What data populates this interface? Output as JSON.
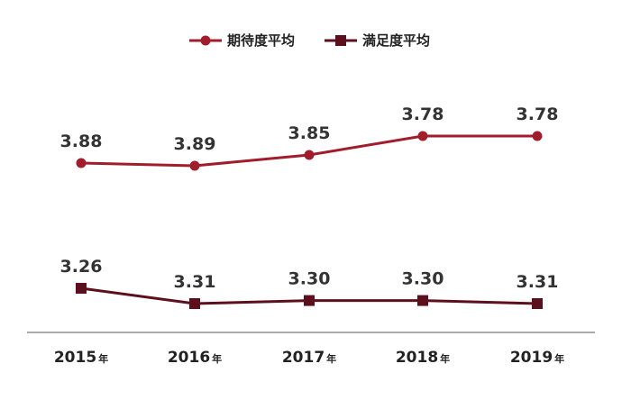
{
  "chart_data": {
    "type": "line",
    "title": "",
    "xlabel": "",
    "ylabel": "",
    "categories": [
      "2015",
      "2016",
      "2017",
      "2018",
      "2019"
    ],
    "category_suffix": "年",
    "ylim": [
      3.0,
      4.0
    ],
    "grid": false,
    "legend": "top-center",
    "series": [
      {
        "name": "期待度平均",
        "marker": "circle",
        "color": "#a11d2c",
        "values": [
          3.88,
          3.89,
          3.85,
          3.78,
          3.78
        ]
      },
      {
        "name": "満足度平均",
        "marker": "square",
        "color": "#5c0f1c",
        "values": [
          3.26,
          3.31,
          3.3,
          3.3,
          3.31
        ]
      }
    ],
    "value_labels": [
      [
        "3.88",
        "3.89",
        "3.85",
        "3.78",
        "3.78"
      ],
      [
        "3.26",
        "3.31",
        "3.30",
        "3.30",
        "3.31"
      ]
    ]
  }
}
